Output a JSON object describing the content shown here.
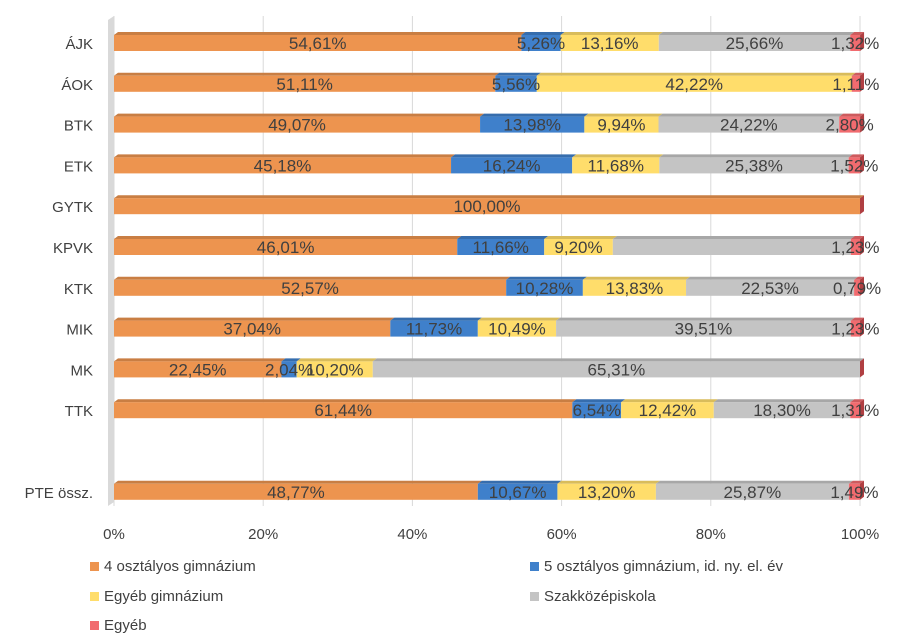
{
  "chart_data": {
    "type": "bar",
    "orientation": "horizontal",
    "stacked": "percent",
    "categories": [
      "ÁJK",
      "ÁOK",
      "BTK",
      "ETK",
      "GYTK",
      "KPVK",
      "KTK",
      "MIK",
      "MK",
      "TTK",
      "",
      "PTE össz."
    ],
    "series": [
      {
        "name": "4 osztályos gimnázium",
        "color": "#ED944F",
        "values": [
          54.61,
          51.11,
          49.07,
          45.18,
          100.0,
          46.01,
          52.57,
          37.04,
          22.45,
          61.44,
          null,
          48.77
        ],
        "labels": [
          "54,61%",
          "51,11%",
          "49,07%",
          "45,18%",
          "100,00%",
          "46,01%",
          "52,57%",
          "37,04%",
          "22,45%",
          "61,44%",
          "",
          "48,77%"
        ]
      },
      {
        "name": "5 osztályos gimnázium, id. ny. el. év",
        "color": "#3F80CB",
        "values": [
          5.26,
          5.56,
          13.98,
          16.24,
          0,
          11.66,
          10.28,
          11.73,
          2.04,
          6.54,
          null,
          10.67
        ],
        "labels": [
          "5,26%",
          "5,56%",
          "13,98%",
          "16,24%",
          "",
          "11,66%",
          "10,28%",
          "11,73%",
          "2,04%",
          "6,54%",
          "",
          "10,67%"
        ]
      },
      {
        "name": "Egyéb gimnázium",
        "color": "#FFDD6B",
        "values": [
          13.16,
          42.22,
          9.94,
          11.68,
          0,
          9.2,
          13.83,
          10.49,
          10.2,
          12.42,
          null,
          13.2
        ],
        "labels": [
          "13,16%",
          "42,22%",
          "9,94%",
          "11,68%",
          "",
          "9,20%",
          "13,83%",
          "10,49%",
          "10,20%",
          "12,42%",
          "",
          "13,20%"
        ]
      },
      {
        "name": "Szakközépiskola",
        "color": "#C4C4C4",
        "values": [
          25.66,
          0,
          24.22,
          25.38,
          0,
          31.9,
          22.53,
          39.51,
          65.31,
          18.3,
          null,
          25.87
        ],
        "labels": [
          "25,66%",
          "",
          "24,22%",
          "25,38%",
          "",
          "",
          "22,53%",
          "39,51%",
          "65,31%",
          "18,30%",
          "",
          "25,87%"
        ]
      },
      {
        "name": "Egyéb",
        "color": "#F16B6F",
        "values": [
          1.32,
          1.11,
          2.8,
          1.52,
          0,
          1.23,
          0.79,
          1.23,
          0,
          1.31,
          null,
          1.49
        ],
        "labels": [
          "1,32%",
          "1,11%",
          "2,80%",
          "1,52%",
          "",
          "1,23%",
          "0,79%",
          "1,23%",
          "",
          "1,31%",
          "",
          "1,49%"
        ]
      }
    ],
    "xlim": [
      0,
      100
    ],
    "x_ticks": [
      "0%",
      "20%",
      "40%",
      "60%",
      "80%",
      "100%"
    ],
    "grid": true,
    "legend_position": "bottom"
  }
}
